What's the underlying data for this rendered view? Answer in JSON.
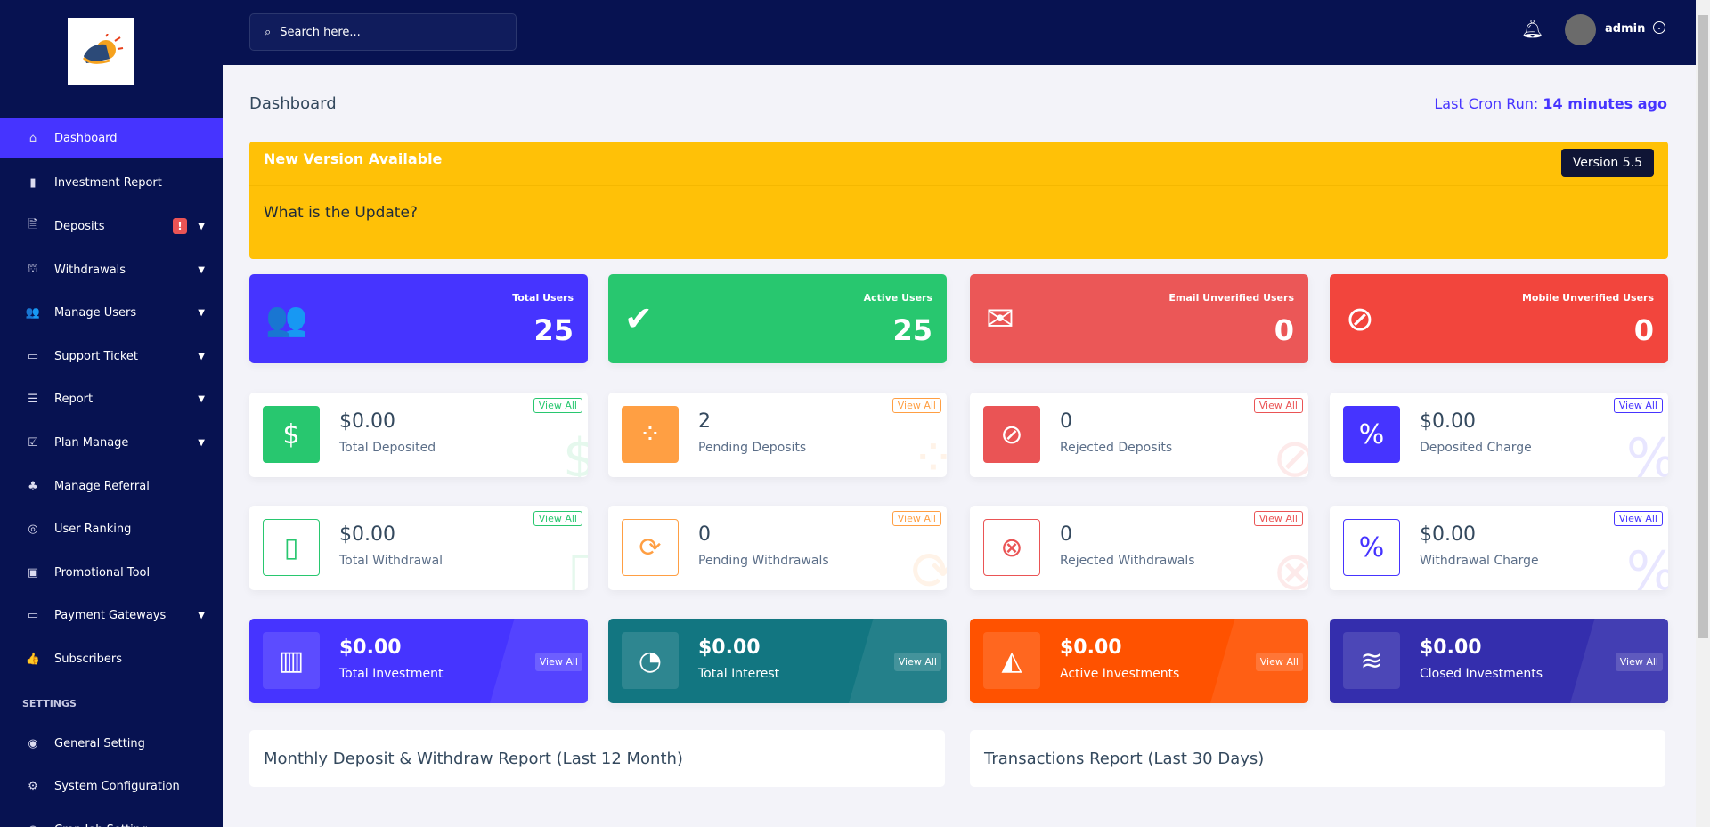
{
  "sidebar": {
    "logo_alt": "logo",
    "items": [
      {
        "label": "Dashboard",
        "icon": "home-icon",
        "glyph": "⌂",
        "active": true
      },
      {
        "label": "Investment Report",
        "icon": "bar-chart-icon",
        "glyph": "▮"
      },
      {
        "label": "Deposits",
        "icon": "invoice-dollar-icon",
        "glyph": "🗎",
        "chev": true,
        "badge": "!"
      },
      {
        "label": "Withdrawals",
        "icon": "bank-icon",
        "glyph": "⛫",
        "chev": true
      },
      {
        "label": "Manage Users",
        "icon": "users-icon",
        "glyph": "👥",
        "chev": true
      },
      {
        "label": "Support Ticket",
        "icon": "ticket-icon",
        "glyph": "▭",
        "chev": true
      },
      {
        "label": "Report",
        "icon": "list-icon",
        "glyph": "☰",
        "chev": true
      },
      {
        "label": "Plan Manage",
        "icon": "clipboard-check-icon",
        "glyph": "☑",
        "chev": true
      },
      {
        "label": "Manage Referral",
        "icon": "tree-icon",
        "glyph": "♣"
      },
      {
        "label": "User Ranking",
        "icon": "medal-icon",
        "glyph": "◎"
      },
      {
        "label": "Promotional Tool",
        "icon": "ad-icon",
        "glyph": "▣"
      },
      {
        "label": "Payment Gateways",
        "icon": "credit-card-icon",
        "glyph": "▭",
        "chev": true
      },
      {
        "label": "Subscribers",
        "icon": "thumbs-up-icon",
        "glyph": "👍"
      }
    ],
    "settings_label": "SETTINGS",
    "settings_items": [
      {
        "label": "General Setting",
        "icon": "life-ring-icon",
        "glyph": "◉"
      },
      {
        "label": "System Configuration",
        "icon": "gear-icon",
        "glyph": "⚙"
      },
      {
        "label": "Cron Job Setting",
        "icon": "clock-icon",
        "glyph": "◷"
      }
    ]
  },
  "topbar": {
    "search_placeholder": "Search here...",
    "user": "admin"
  },
  "header": {
    "title": "Dashboard",
    "cron_label": "Last Cron Run:",
    "cron_value": "14 minutes ago"
  },
  "banner": {
    "title": "New Version Available",
    "question": "What is the Update?",
    "version": "Version 5.5"
  },
  "user_stats": [
    {
      "label": "Total Users",
      "value": "25",
      "color": "#4634ff",
      "icon": "users-icon",
      "glyph": "👥"
    },
    {
      "label": "Active Users",
      "value": "25",
      "color": "#28c76f",
      "icon": "user-check-icon",
      "glyph": "✔"
    },
    {
      "label": "Email Unverified Users",
      "value": "0",
      "color": "#eb5757",
      "icon": "envelope-icon",
      "glyph": "✉"
    },
    {
      "label": "Mobile Unverified Users",
      "value": "0",
      "color": "#f2453d",
      "icon": "comment-slash-icon",
      "glyph": "⊘"
    }
  ],
  "deposit_stats": [
    {
      "value": "$0.00",
      "label": "Total Deposited",
      "color": "#28c76f",
      "icon": "hand-dollar-icon",
      "glyph": "$",
      "view": "View All"
    },
    {
      "value": "2",
      "label": "Pending Deposits",
      "color": "#ff9f43",
      "icon": "spinner-icon",
      "glyph": "⁘",
      "view": "View All"
    },
    {
      "value": "0",
      "label": "Rejected Deposits",
      "color": "#ea5455",
      "icon": "ban-icon",
      "glyph": "⊘",
      "view": "View All"
    },
    {
      "value": "$0.00",
      "label": "Deposited Charge",
      "color": "#4634ff",
      "icon": "percent-icon",
      "glyph": "%",
      "view": "View All"
    }
  ],
  "withdraw_stats": [
    {
      "value": "$0.00",
      "label": "Total Withdrawal",
      "color": "#28c76f",
      "icon": "wallet-icon",
      "glyph": "▯",
      "view": "View All"
    },
    {
      "value": "0",
      "label": "Pending Withdrawals",
      "color": "#ff9f43",
      "icon": "sync-icon",
      "glyph": "⟳",
      "view": "View All"
    },
    {
      "value": "0",
      "label": "Rejected Withdrawals",
      "color": "#ea5455",
      "icon": "times-circle-icon",
      "glyph": "⊗",
      "view": "View All"
    },
    {
      "value": "$0.00",
      "label": "Withdrawal Charge",
      "color": "#4634ff",
      "icon": "percent-icon",
      "glyph": "%",
      "view": "View All"
    }
  ],
  "invest_stats": [
    {
      "value": "$0.00",
      "label": "Total Investment",
      "color": "#4634ff",
      "icon": "chart-bar-icon",
      "glyph": "▥",
      "view": "View All"
    },
    {
      "value": "$0.00",
      "label": "Total Interest",
      "color": "#127681",
      "icon": "pie-chart-icon",
      "glyph": "◔",
      "view": "View All"
    },
    {
      "value": "$0.00",
      "label": "Active Investments",
      "color": "#ff5200",
      "icon": "chart-area-icon",
      "glyph": "◭",
      "view": "View All"
    },
    {
      "value": "$0.00",
      "label": "Closed Investments",
      "color": "#342ead",
      "icon": "chart-line-icon",
      "glyph": "≋",
      "view": "View All"
    }
  ],
  "reports": [
    {
      "title": "Monthly Deposit & Withdraw Report (Last 12 Month)"
    },
    {
      "title": "Transactions Report (Last 30 Days)"
    }
  ]
}
